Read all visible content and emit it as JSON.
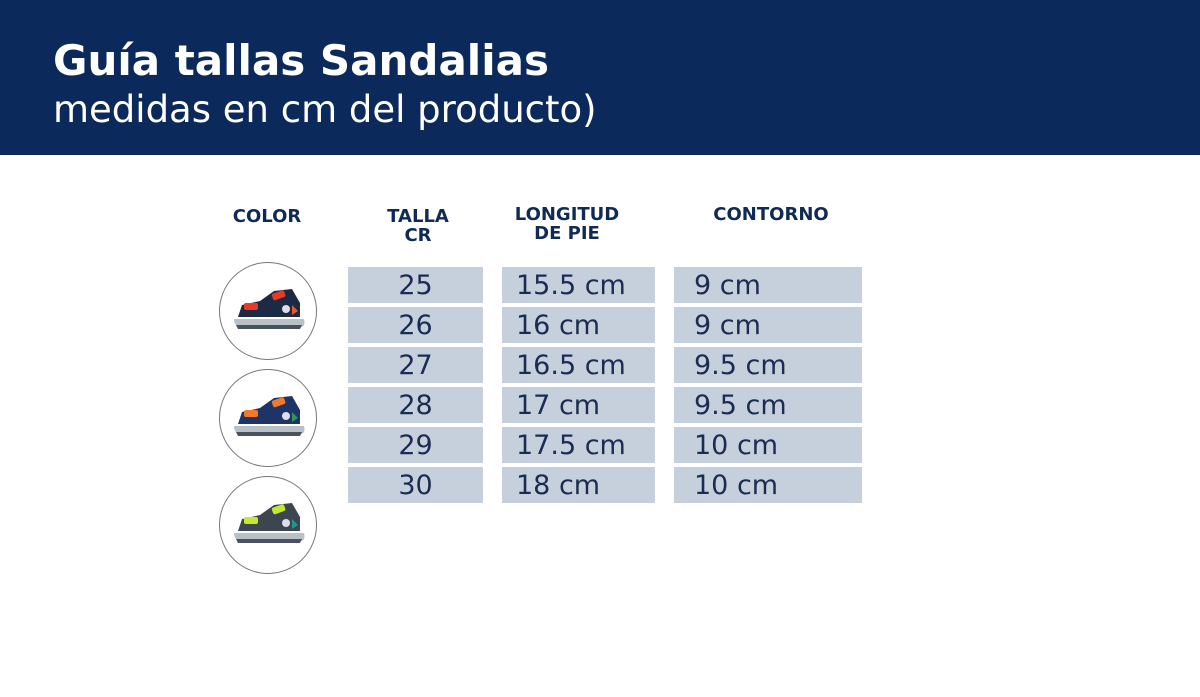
{
  "header": {
    "title": "Guía tallas Sandalias",
    "subtitle": "medidas en cm del producto)",
    "background": "#0b2a5b"
  },
  "columns": {
    "color": "COLOR",
    "talla": [
      "TALLA",
      "CR"
    ],
    "longitud": [
      "LONGITUD",
      "DE PIE"
    ],
    "contorno": "CONTORNO"
  },
  "rows": [
    {
      "talla": "25",
      "longitud": "15.5 cm",
      "contorno": "9 cm"
    },
    {
      "talla": "26",
      "longitud": "16 cm",
      "contorno": "9 cm"
    },
    {
      "talla": "27",
      "longitud": "16.5 cm",
      "contorno": "9.5 cm"
    },
    {
      "talla": "28",
      "longitud": "17 cm",
      "contorno": "9.5 cm"
    },
    {
      "talla": "29",
      "longitud": "17.5 cm",
      "contorno": "10 cm"
    },
    {
      "talla": "30",
      "longitud": "18 cm",
      "contorno": "10 cm"
    }
  ],
  "colors": [
    {
      "body": "#1d2a44",
      "strap": "#e8392a",
      "accent": "#e85a2a"
    },
    {
      "body": "#1f3466",
      "strap": "#f07a2a",
      "accent": "#2a9a5a"
    },
    {
      "body": "#3d4650",
      "strap": "#c6e830",
      "accent": "#1a9a8a"
    }
  ]
}
